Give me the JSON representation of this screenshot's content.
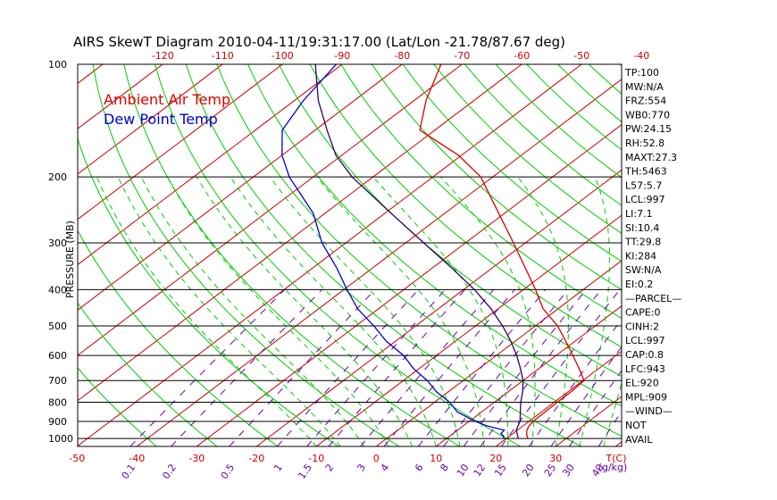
{
  "title": "AIRS SkewT Diagram 2010-04-11/19:31:17.00 (Lat/Lon -21.78/87.67 deg)",
  "legend": {
    "air_temp": "Ambient Air Temp",
    "dew_point": "Dew Point Temp",
    "air_color": "#dd0000",
    "dew_color": "#0000cc"
  },
  "y_axis_label": "PRESSURE (MB)",
  "colors": {
    "isotherm": "#cc0000",
    "dry_adiabat": "#00cc00",
    "moist_adiabat": "#00cc00",
    "mixing_ratio": "#6600aa",
    "parcel": "#330066",
    "isobar": "#000000"
  },
  "stats": [
    "TP:100",
    "MW:N/A",
    "FRZ:554",
    "WB0:770",
    "PW:24.15",
    "RH:52.8",
    "MAXT:27.3",
    "TH:5463",
    "L57:5.7",
    "LCL:997",
    "LI:7.1",
    "SI:10.4",
    "TT:29.8",
    "KI:284",
    "SW:N/A",
    "EI:0.2",
    "—PARCEL—",
    "CAPE:0",
    "CINH:2",
    "LCL:997",
    "CAP:0.8",
    "LFC:943",
    "EL:920",
    "MPL:909",
    "—WIND—",
    "NOT",
    "AVAIL"
  ],
  "chart_data": {
    "type": "line",
    "title": "AIRS SkewT Diagram 2010-04-11/19:31:17.00 (Lat/Lon -21.78/87.67 deg)",
    "ylabel": "PRESSURE (MB)",
    "xlabel": "T(C)",
    "y_scale": "log",
    "ylim": [
      1050,
      100
    ],
    "pressure_ticks": [
      100,
      200,
      300,
      400,
      500,
      600,
      700,
      800,
      900,
      1000
    ],
    "top_temp_ticks": [
      -120,
      -110,
      -100,
      -90,
      -80,
      -70,
      -60,
      -50,
      -40
    ],
    "bottom_temp_ticks": [
      -50,
      -40,
      -30,
      -20,
      -10,
      0,
      10,
      20,
      30
    ],
    "bottom_temp_unit": "T(C)",
    "mixing_ratio_ticks": [
      "0.1",
      "0.2",
      "0.5",
      "1",
      "1.5",
      "2",
      "3",
      "4",
      "6",
      "8",
      "10",
      "12",
      "15",
      "20",
      "25",
      "30",
      "40"
    ],
    "mixing_ratio_unit": "(g/kg)",
    "series": [
      {
        "name": "Ambient Air Temp",
        "pressure": [
          1000,
          985,
          970,
          950,
          925,
          900,
          850,
          800,
          750,
          700,
          650,
          600,
          550,
          500,
          450,
          400,
          350,
          300,
          250,
          200,
          175,
          150,
          125,
          100
        ],
        "temperature": [
          23.6,
          22.9,
          22.3,
          21.6,
          21.0,
          20.7,
          20.6,
          20.5,
          20.5,
          20.2,
          16.7,
          12.8,
          8.5,
          3.7,
          -2.5,
          -8.0,
          -14.5,
          -22.0,
          -31.0,
          -42.0,
          -50.5,
          -62.5,
          -68.0,
          -73.5
        ]
      },
      {
        "name": "Dew Point Temp",
        "pressure": [
          1000,
          985,
          970,
          950,
          925,
          900,
          850,
          800,
          750,
          700,
          650,
          600,
          550,
          500,
          450,
          400,
          350,
          300,
          250,
          200,
          175,
          150,
          125,
          100
        ],
        "temperature": [
          19.5,
          19.0,
          18.0,
          17.8,
          13.9,
          11.0,
          6.0,
          2.5,
          -2.0,
          -6.0,
          -11.0,
          -15.5,
          -21.5,
          -27.0,
          -33.5,
          -39.5,
          -46.0,
          -54.0,
          -62.0,
          -74.0,
          -80.0,
          -85.5,
          -88.5,
          -91.0
        ]
      },
      {
        "name": "parcel",
        "pressure": [
          1000,
          950,
          900,
          850,
          800,
          750,
          700,
          650,
          600,
          550,
          500,
          450,
          400,
          350,
          300,
          250,
          200,
          175,
          150,
          125,
          100
        ],
        "temperature": [
          22.0,
          19.8,
          18.5,
          16.5,
          14.4,
          12.4,
          10.0,
          6.9,
          3.4,
          -0.7,
          -5.5,
          -11.2,
          -18.2,
          -26.8,
          -37.0,
          -49.0,
          -63.5,
          -71.0,
          -78.0,
          -86.0,
          -94.5
        ]
      }
    ]
  }
}
